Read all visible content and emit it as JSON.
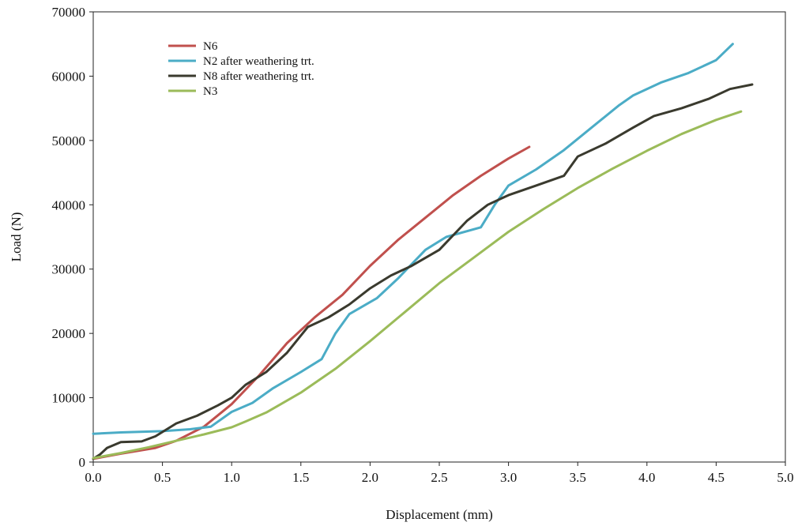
{
  "chart_data": {
    "type": "line",
    "title": "",
    "xlabel": "Displacement (mm)",
    "ylabel": "Load (N)",
    "xlim": [
      0,
      5
    ],
    "ylim": [
      0,
      70000
    ],
    "xticks": [
      "0.0",
      "0.5",
      "1.0",
      "1.5",
      "2.0",
      "2.5",
      "3.0",
      "3.5",
      "4.0",
      "4.5",
      "5.0"
    ],
    "yticks": [
      "0",
      "10000",
      "20000",
      "30000",
      "40000",
      "50000",
      "60000",
      "70000"
    ],
    "grid": false,
    "legend_position": "top-left",
    "series": [
      {
        "name": "N6",
        "color": "#c0504d",
        "x": [
          0.0,
          0.2,
          0.45,
          0.6,
          0.8,
          1.0,
          1.2,
          1.4,
          1.6,
          1.8,
          2.0,
          2.2,
          2.4,
          2.6,
          2.8,
          3.0,
          3.15
        ],
        "y": [
          500,
          1300,
          2200,
          3300,
          5500,
          9000,
          13500,
          18500,
          22500,
          26000,
          30500,
          34500,
          38000,
          41500,
          44500,
          47200,
          49000
        ]
      },
      {
        "name": "N2 after weathering trt.",
        "color": "#4bacc6",
        "x": [
          0.0,
          0.2,
          0.5,
          0.7,
          0.85,
          1.0,
          1.15,
          1.3,
          1.5,
          1.65,
          1.75,
          1.85,
          2.05,
          2.2,
          2.4,
          2.55,
          2.8,
          2.9,
          3.0,
          3.2,
          3.4,
          3.6,
          3.8,
          3.9,
          4.1,
          4.3,
          4.5,
          4.62
        ],
        "y": [
          4400,
          4600,
          4800,
          5100,
          5500,
          7800,
          9200,
          11500,
          14000,
          16000,
          20000,
          23000,
          25500,
          28500,
          33000,
          35000,
          36500,
          40000,
          43000,
          45500,
          48500,
          52000,
          55500,
          57000,
          59000,
          60500,
          62500,
          65000
        ]
      },
      {
        "name": "N8 after weathering trt.",
        "color": "#3a3a2e",
        "x": [
          0.0,
          0.05,
          0.1,
          0.2,
          0.35,
          0.45,
          0.6,
          0.75,
          0.9,
          1.0,
          1.1,
          1.25,
          1.4,
          1.55,
          1.7,
          1.85,
          2.0,
          2.15,
          2.3,
          2.5,
          2.7,
          2.85,
          3.0,
          3.2,
          3.4,
          3.5,
          3.7,
          3.9,
          4.05,
          4.25,
          4.45,
          4.6,
          4.76
        ],
        "y": [
          500,
          1200,
          2200,
          3100,
          3200,
          4000,
          6000,
          7200,
          8800,
          10000,
          12000,
          14000,
          17000,
          21000,
          22500,
          24500,
          27000,
          29000,
          30500,
          33000,
          37500,
          40000,
          41500,
          43000,
          44500,
          47500,
          49500,
          52000,
          53800,
          55000,
          56500,
          58000,
          58700
        ]
      },
      {
        "name": "N3",
        "color": "#9bbb59",
        "x": [
          0.0,
          0.2,
          0.4,
          0.6,
          0.8,
          1.0,
          1.1,
          1.25,
          1.5,
          1.75,
          2.0,
          2.25,
          2.5,
          2.75,
          3.0,
          3.25,
          3.5,
          3.75,
          4.0,
          4.25,
          4.5,
          4.68
        ],
        "y": [
          600,
          1400,
          2300,
          3300,
          4300,
          5400,
          6300,
          7700,
          10800,
          14500,
          18800,
          23300,
          27800,
          31800,
          35800,
          39300,
          42600,
          45600,
          48400,
          51000,
          53200,
          54500
        ]
      }
    ]
  }
}
